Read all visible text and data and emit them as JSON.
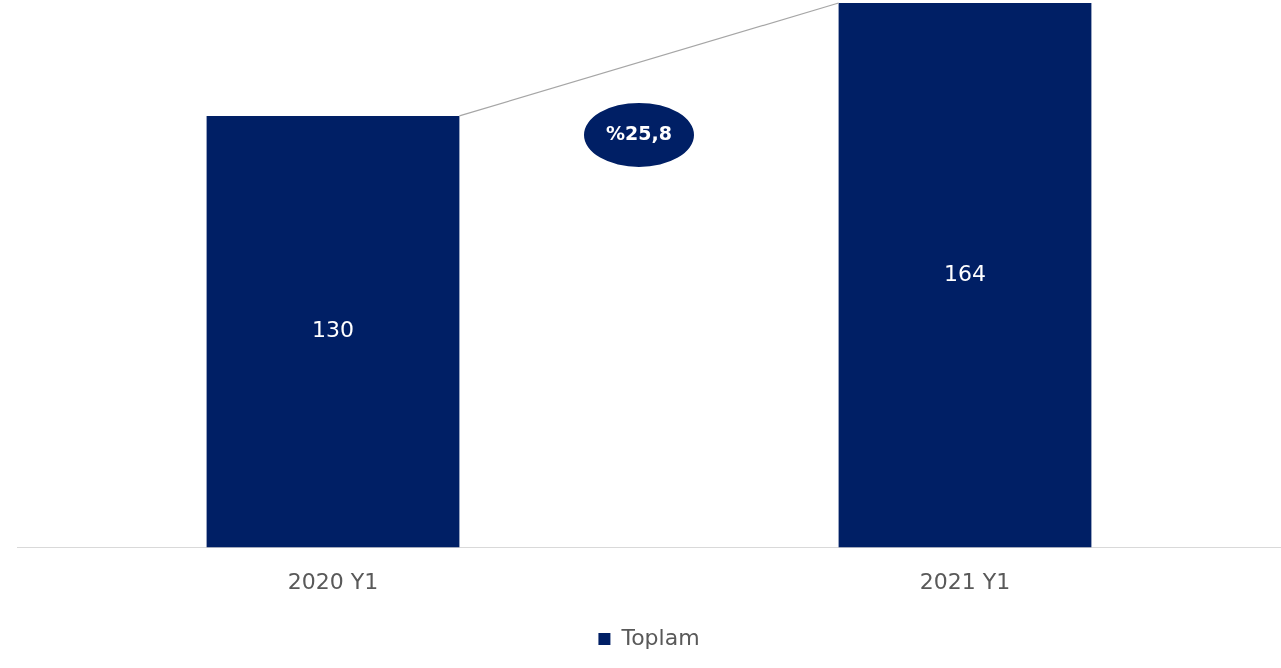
{
  "chart_data": {
    "type": "bar",
    "categories": [
      "2020 Y1",
      "2021 Y1"
    ],
    "series": [
      {
        "name": "Toplam",
        "color": "#001f65",
        "values": [
          130,
          164
        ]
      }
    ],
    "data_labels": true,
    "legend": "bottom",
    "grid": false,
    "tick_labels": "x",
    "annotations": [
      "%25,8"
    ]
  }
}
